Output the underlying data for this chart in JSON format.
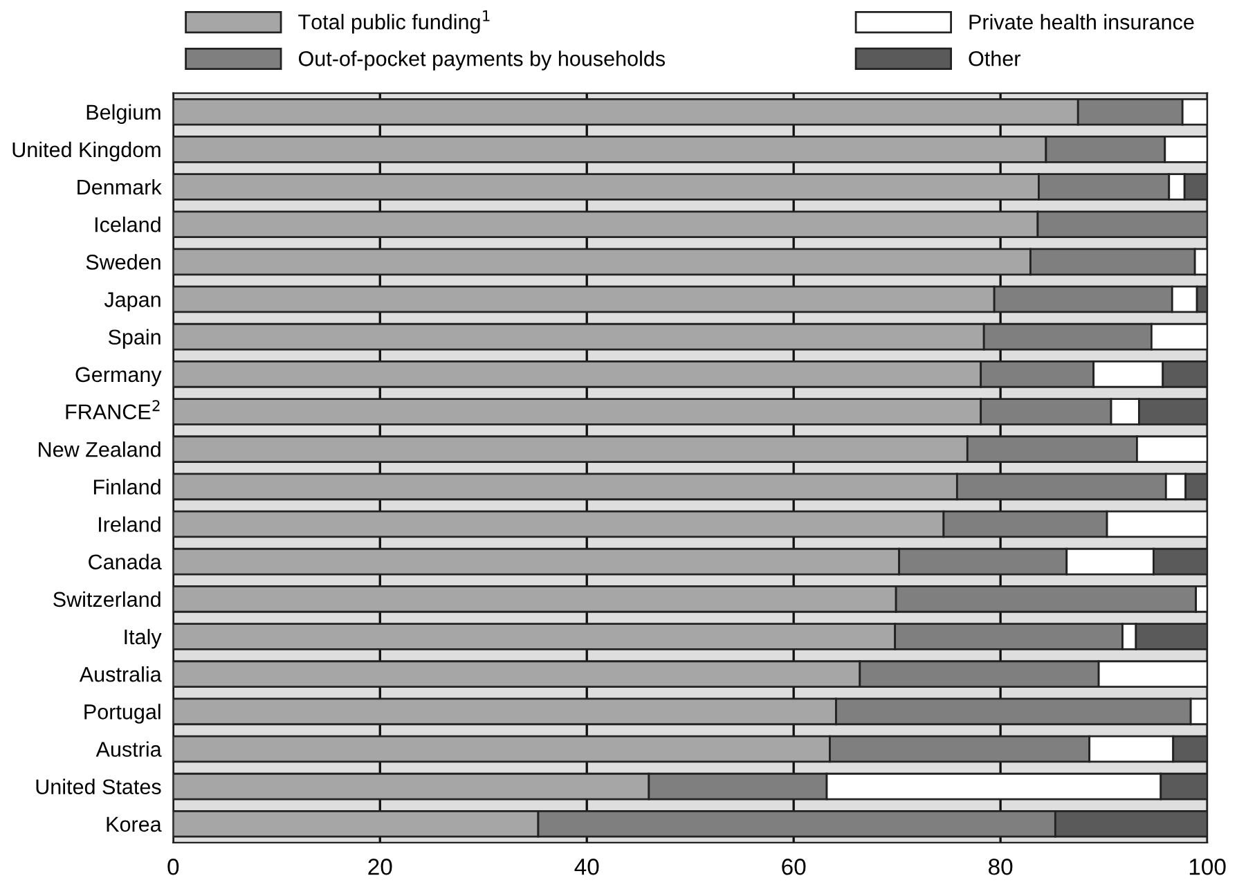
{
  "chart_data": {
    "type": "bar",
    "orientation": "horizontal",
    "stacked": true,
    "categories": [
      "Belgium",
      "United Kingdom",
      "Denmark",
      "Iceland",
      "Sweden",
      "Japan",
      "Spain",
      "Germany",
      "FRANCE$^{2}$",
      "New Zealand",
      "Finland",
      "Ireland",
      "Canada",
      "Switzerland",
      "Italy",
      "Australia",
      "Portugal",
      "Austria",
      "United States",
      "Korea"
    ],
    "series": [
      {
        "name": "Total public funding$^{1}$",
        "color": "#a6a6a6",
        "values": [
          87.5,
          84.4,
          83.7,
          83.6,
          82.9,
          79.4,
          78.4,
          78.1,
          78.1,
          76.8,
          75.8,
          74.5,
          70.2,
          69.9,
          69.8,
          66.4,
          64.1,
          63.5,
          46.0,
          35.3
        ]
      },
      {
        "name": "Out-of-pocket payments by households",
        "color": "#7f7f7f",
        "values": [
          10.1,
          11.5,
          12.6,
          16.4,
          15.9,
          17.2,
          16.2,
          10.9,
          12.6,
          16.4,
          20.2,
          15.8,
          16.2,
          29.0,
          22.0,
          23.1,
          34.3,
          25.1,
          17.2,
          50.0
        ]
      },
      {
        "name": "Private health insurance",
        "color": "#ffffff",
        "values": [
          2.4,
          4.1,
          1.5,
          0,
          1.2,
          2.4,
          5.4,
          6.7,
          2.7,
          6.8,
          1.9,
          9.7,
          8.4,
          1.1,
          1.3,
          10.5,
          1.6,
          8.1,
          32.3,
          0
        ]
      },
      {
        "name": "Other",
        "color": "#5a5a5a",
        "values": [
          0,
          0,
          2.2,
          0,
          0,
          1.0,
          0,
          4.3,
          6.6,
          0,
          2.1,
          0,
          5.2,
          0,
          6.9,
          0,
          0,
          3.3,
          4.5,
          14.7
        ]
      }
    ],
    "xlim": [
      0,
      100
    ],
    "xticks": [
      0,
      20,
      40,
      60,
      80,
      100
    ],
    "grid": "x",
    "legend": "top"
  }
}
